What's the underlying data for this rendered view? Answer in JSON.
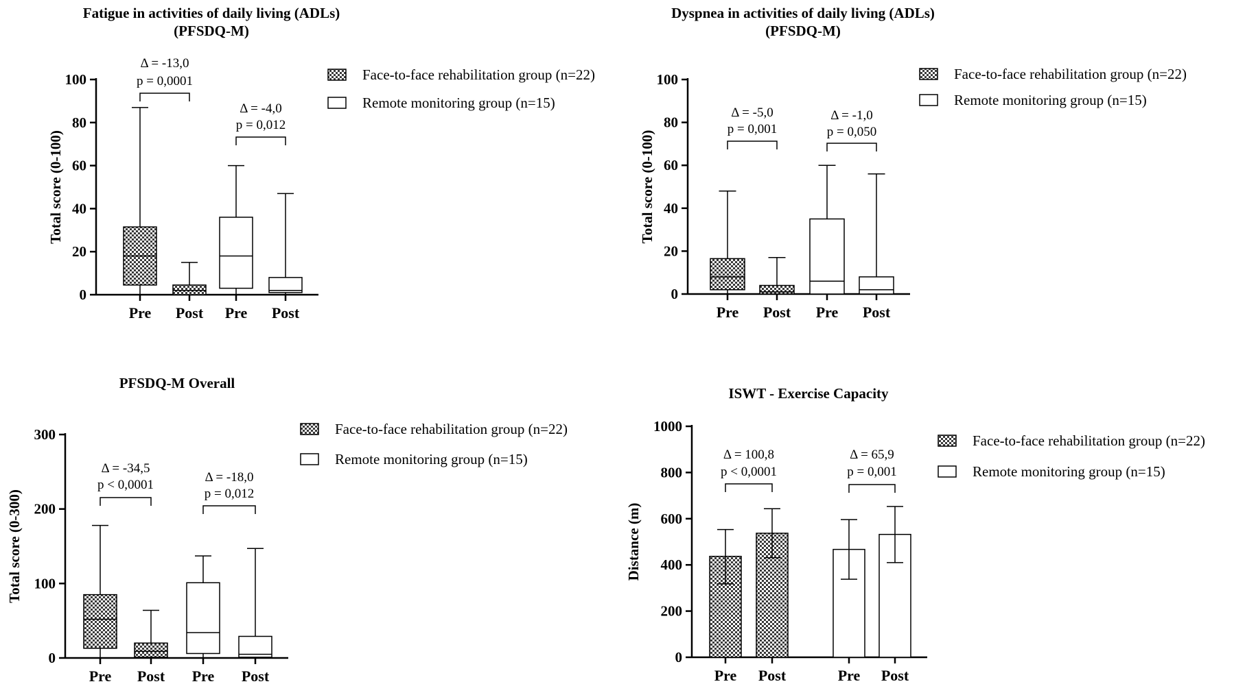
{
  "chart_data": [
    {
      "type": "boxplot",
      "title_lines": [
        "Fatigue in activities of daily living (ADLs)",
        "(PFSDQ-M)"
      ],
      "ylabel": "Total score (0-100)",
      "ylim": [
        0,
        100
      ],
      "yticks": [
        0,
        20,
        40,
        60,
        80,
        100
      ],
      "categories": [
        "Pre",
        "Post",
        "Pre",
        "Post"
      ],
      "boxes": [
        {
          "group": "Face-to-face rehabilitation group (n=22)",
          "time": "Pre",
          "min": 0,
          "q1": 4.5,
          "median": 18,
          "q3": 31.5,
          "max": 87
        },
        {
          "group": "Face-to-face rehabilitation group (n=22)",
          "time": "Post",
          "min": 0,
          "q1": 0,
          "median": 2,
          "q3": 4.5,
          "max": 15
        },
        {
          "group": "Remote monitoring group  (n=15)",
          "time": "Pre",
          "min": 0,
          "q1": 3,
          "median": 18,
          "q3": 36,
          "max": 60
        },
        {
          "group": "Remote monitoring group  (n=15)",
          "time": "Post",
          "min": 0,
          "q1": 1,
          "median": 2,
          "q3": 8,
          "max": 47
        }
      ],
      "comparisons": [
        {
          "from": 0,
          "to": 1,
          "delta": "Δ = -13,0",
          "p": "p = 0,0001"
        },
        {
          "from": 2,
          "to": 3,
          "delta": "Δ = -4,0",
          "p": "p = 0,012"
        }
      ],
      "legend": [
        "Face-to-face rehabilitation group (n=22)",
        "Remote monitoring group  (n=15)"
      ]
    },
    {
      "type": "boxplot",
      "title_lines": [
        "Dyspnea in activities of daily living (ADLs)",
        "(PFSDQ-M)"
      ],
      "ylabel": "Total score (0-100)",
      "ylim": [
        0,
        100
      ],
      "yticks": [
        0,
        20,
        40,
        60,
        80,
        100
      ],
      "categories": [
        "Pre",
        "Post",
        "Pre",
        "Post"
      ],
      "boxes": [
        {
          "group": "Face-to-face rehabilitation group (n=22)",
          "time": "Pre",
          "min": 0,
          "q1": 2,
          "median": 8,
          "q3": 16.5,
          "max": 48
        },
        {
          "group": "Face-to-face rehabilitation group (n=22)",
          "time": "Post",
          "min": 0,
          "q1": 0,
          "median": 1,
          "q3": 4,
          "max": 17
        },
        {
          "group": "Remote monitoring group  (n=15)",
          "time": "Pre",
          "min": 0,
          "q1": 0,
          "median": 6,
          "q3": 35,
          "max": 60
        },
        {
          "group": "Remote monitoring group  (n=15)",
          "time": "Post",
          "min": 0,
          "q1": 0,
          "median": 2,
          "q3": 8,
          "max": 56
        }
      ],
      "comparisons": [
        {
          "from": 0,
          "to": 1,
          "delta": "Δ = -5,0",
          "p": "p = 0,001"
        },
        {
          "from": 2,
          "to": 3,
          "delta": "Δ = -1,0",
          "p": "p = 0,050"
        }
      ],
      "legend": [
        "Face-to-face rehabilitation group (n=22)",
        "Remote monitoring group  (n=15)"
      ]
    },
    {
      "type": "boxplot",
      "title_lines": [
        "PFSDQ-M Overall"
      ],
      "ylabel": "Total score (0-300)",
      "ylim": [
        0,
        300
      ],
      "yticks": [
        0,
        100,
        200,
        300
      ],
      "categories": [
        "Pre",
        "Post",
        "Pre",
        "Post"
      ],
      "boxes": [
        {
          "group": "Face-to-face rehabilitation group (n=22)",
          "time": "Pre",
          "min": 0,
          "q1": 13,
          "median": 52,
          "q3": 85,
          "max": 178
        },
        {
          "group": "Face-to-face rehabilitation group (n=22)",
          "time": "Post",
          "min": 0,
          "q1": 1,
          "median": 9,
          "q3": 20,
          "max": 64
        },
        {
          "group": "Remote monitoring group  (n=15)",
          "time": "Pre",
          "min": 0,
          "q1": 6,
          "median": 34,
          "q3": 101,
          "max": 137
        },
        {
          "group": "Remote monitoring group  (n=15)",
          "time": "Post",
          "min": 0,
          "q1": 1,
          "median": 5,
          "q3": 29,
          "max": 147
        }
      ],
      "comparisons": [
        {
          "from": 0,
          "to": 1,
          "delta": "Δ = -34,5",
          "p": "p < 0,0001"
        },
        {
          "from": 2,
          "to": 3,
          "delta": "Δ = -18,0",
          "p": "p = 0,012"
        }
      ],
      "legend": [
        "Face-to-face rehabilitation group (n=22)",
        "Remote monitoring group  (n=15)"
      ]
    },
    {
      "type": "bar",
      "title_lines": [
        "ISWT - Exercise Capacity"
      ],
      "ylabel": "Distance (m)",
      "ylim": [
        0,
        1000
      ],
      "yticks": [
        0,
        200,
        400,
        600,
        800,
        1000
      ],
      "categories": [
        "Pre",
        "Post",
        "Pre",
        "Post"
      ],
      "bars": [
        {
          "group": "Face-to-face rehabilitation group (n=22)",
          "time": "Pre",
          "value": 437,
          "err_low": 318,
          "err_high": 553
        },
        {
          "group": "Face-to-face rehabilitation group (n=22)",
          "time": "Post",
          "value": 537,
          "err_low": 431,
          "err_high": 643
        },
        {
          "group": "Remote monitoring group  (n=15)",
          "time": "Pre",
          "value": 467,
          "err_low": 338,
          "err_high": 596
        },
        {
          "group": "Remote monitoring group  (n=15)",
          "time": "Post",
          "value": 532,
          "err_low": 410,
          "err_high": 653
        }
      ],
      "comparisons": [
        {
          "from": 0,
          "to": 1,
          "delta": "Δ = 100,8",
          "p": "p < 0,0001"
        },
        {
          "from": 2,
          "to": 3,
          "delta": "Δ = 65,9",
          "p": "p = 0,001"
        }
      ],
      "legend": [
        "Face-to-face rehabilitation group (n=22)",
        "Remote monitoring group  (n=15)"
      ]
    }
  ]
}
